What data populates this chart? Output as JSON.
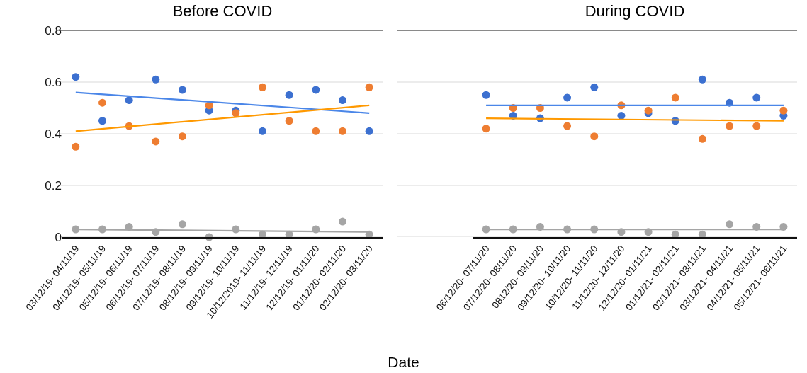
{
  "chart_data": [
    {
      "type": "scatter",
      "title": "Before COVID",
      "xlabel": "Date",
      "categories": [
        "03/12/19- 04/11/19",
        "04/12/19- 05/11/19",
        "05/12/19- 06/11/19",
        "06/12/19- 07/11/19",
        "07/12/19- 08/11/19",
        "08/12/19- 09/11/19",
        "09/12/19- 10/11/19",
        "10/12/2019- 11/11/19",
        "11/12/19- 12/11/19",
        "12/12/19- 01/11/20",
        "01/12/20- 02/11/20",
        "02/12/20- 03/11/20"
      ],
      "ylim": [
        0,
        0.8
      ],
      "yticks": [
        0,
        0.2,
        0.4,
        0.6,
        0.8
      ],
      "grid": "y",
      "series": [
        {
          "marker": "circle",
          "color": "#3c70d0",
          "values": [
            0.62,
            0.45,
            0.53,
            0.61,
            0.57,
            0.49,
            0.49,
            0.41,
            0.55,
            0.57,
            0.53,
            0.41
          ]
        },
        {
          "marker": "circle",
          "color": "#ee7d31",
          "values": [
            0.35,
            0.52,
            0.43,
            0.37,
            0.39,
            0.51,
            0.48,
            0.58,
            0.45,
            0.41,
            0.41,
            0.58
          ]
        },
        {
          "marker": "circle",
          "color": "#a5a5a5",
          "values": [
            0.03,
            0.03,
            0.04,
            0.02,
            0.05,
            0.0,
            0.03,
            0.01,
            0.01,
            0.03,
            0.06,
            0.01
          ]
        },
        {
          "type": "line",
          "color": "#4a86e8",
          "x": [
            "03/12/19- 04/11/19",
            "02/12/20- 03/11/20"
          ],
          "values": [
            0.56,
            0.48
          ]
        },
        {
          "type": "line",
          "color": "#ff9900",
          "x": [
            "03/12/19- 04/11/19",
            "02/12/20- 03/11/20"
          ],
          "values": [
            0.41,
            0.51
          ]
        },
        {
          "type": "line",
          "color": "#a5a5a5",
          "x": [
            "03/12/19- 04/11/19",
            "02/12/20- 03/11/20"
          ],
          "values": [
            0.03,
            0.02
          ]
        }
      ]
    },
    {
      "type": "scatter",
      "title": "During COVID",
      "categories": [
        "06/12/20- 07/11/20",
        "07/12/20- 08/11/20",
        "0812/20- 09/11/20",
        "09/12/20- 10/11/20",
        "10/12/20- 11/11/20",
        "11/12/20- 12/11/20",
        "12/12/20- 01/11/21",
        "01/12/21- 02/11/21",
        "02/12/21- 03/11/21",
        "03/12/21- 04/11/21",
        "04/12/21- 05/11/21",
        "05/12/21- 06/11/21"
      ],
      "ylim": [
        0,
        0.8
      ],
      "yticks": [
        0,
        0.2,
        0.4,
        0.6,
        0.8
      ],
      "tick_labels": "x",
      "grid": "y",
      "series": [
        {
          "marker": "circle",
          "color": "#3c70d0",
          "values": [
            0.55,
            0.47,
            0.46,
            0.54,
            0.58,
            0.47,
            0.48,
            0.45,
            0.61,
            0.52,
            0.54,
            0.47
          ]
        },
        {
          "marker": "circle",
          "color": "#ee7d31",
          "values": [
            0.42,
            0.5,
            0.5,
            0.43,
            0.39,
            0.51,
            0.49,
            0.54,
            0.38,
            0.43,
            0.43,
            0.49
          ]
        },
        {
          "marker": "circle",
          "color": "#a5a5a5",
          "values": [
            0.03,
            0.03,
            0.04,
            0.03,
            0.03,
            0.02,
            0.02,
            0.01,
            0.01,
            0.05,
            0.04,
            0.04
          ]
        },
        {
          "type": "line",
          "color": "#4a86e8",
          "x": [
            "06/12/20- 07/11/20",
            "05/12/21- 06/11/21"
          ],
          "values": [
            0.51,
            0.51
          ]
        },
        {
          "type": "line",
          "color": "#ff9900",
          "x": [
            "06/12/20- 07/11/20",
            "05/12/21- 06/11/21"
          ],
          "values": [
            0.46,
            0.45
          ]
        },
        {
          "type": "line",
          "color": "#a5a5a5",
          "x": [
            "06/12/20- 07/11/20",
            "05/12/21- 06/11/21"
          ],
          "values": [
            0.03,
            0.03
          ]
        }
      ]
    }
  ]
}
